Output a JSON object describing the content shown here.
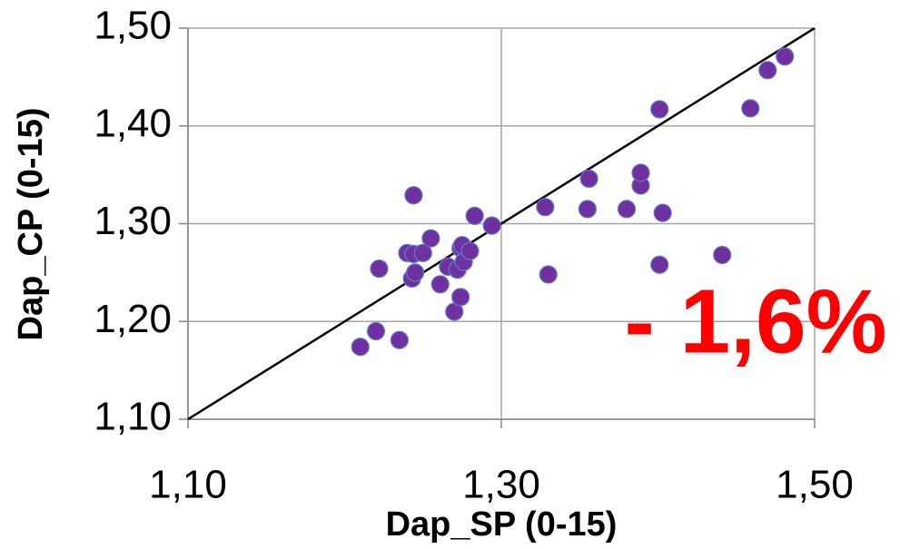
{
  "chart_data": {
    "type": "scatter",
    "x_label": "Dap_SP (0-15)",
    "y_label": "Dap_CP (0-15)",
    "annotation": "- 1,6%",
    "xlim": [
      1.1,
      1.5
    ],
    "ylim": [
      1.1,
      1.5
    ],
    "xticks": [
      {
        "value": 1.1,
        "label": "1,10"
      },
      {
        "value": 1.3,
        "label": "1,30"
      },
      {
        "value": 1.5,
        "label": "1,50"
      }
    ],
    "yticks": [
      {
        "value": 1.1,
        "label": "1,10"
      },
      {
        "value": 1.2,
        "label": "1,20"
      },
      {
        "value": 1.3,
        "label": "1,30"
      },
      {
        "value": 1.4,
        "label": "1,40"
      },
      {
        "value": 1.5,
        "label": "1,50"
      }
    ],
    "grid": true,
    "identity_line": true,
    "color": "#7030a0",
    "annotation_color": "#ff0000",
    "x": [
      1.21,
      1.22,
      1.235,
      1.222,
      1.24,
      1.244,
      1.25,
      1.243,
      1.245,
      1.244,
      1.255,
      1.261,
      1.266,
      1.27,
      1.272,
      1.274,
      1.276,
      1.275,
      1.274,
      1.28,
      1.283,
      1.294,
      1.328,
      1.33,
      1.356,
      1.355,
      1.38,
      1.389,
      1.389,
      1.401,
      1.403,
      1.401,
      1.441,
      1.459,
      1.47,
      1.481
    ],
    "values": [
      1.174,
      1.19,
      1.181,
      1.254,
      1.27,
      1.269,
      1.27,
      1.244,
      1.25,
      1.329,
      1.285,
      1.238,
      1.256,
      1.21,
      1.253,
      1.275,
      1.261,
      1.278,
      1.225,
      1.272,
      1.308,
      1.298,
      1.317,
      1.248,
      1.346,
      1.315,
      1.315,
      1.339,
      1.352,
      1.417,
      1.311,
      1.258,
      1.268,
      1.418,
      1.457,
      1.471
    ]
  }
}
